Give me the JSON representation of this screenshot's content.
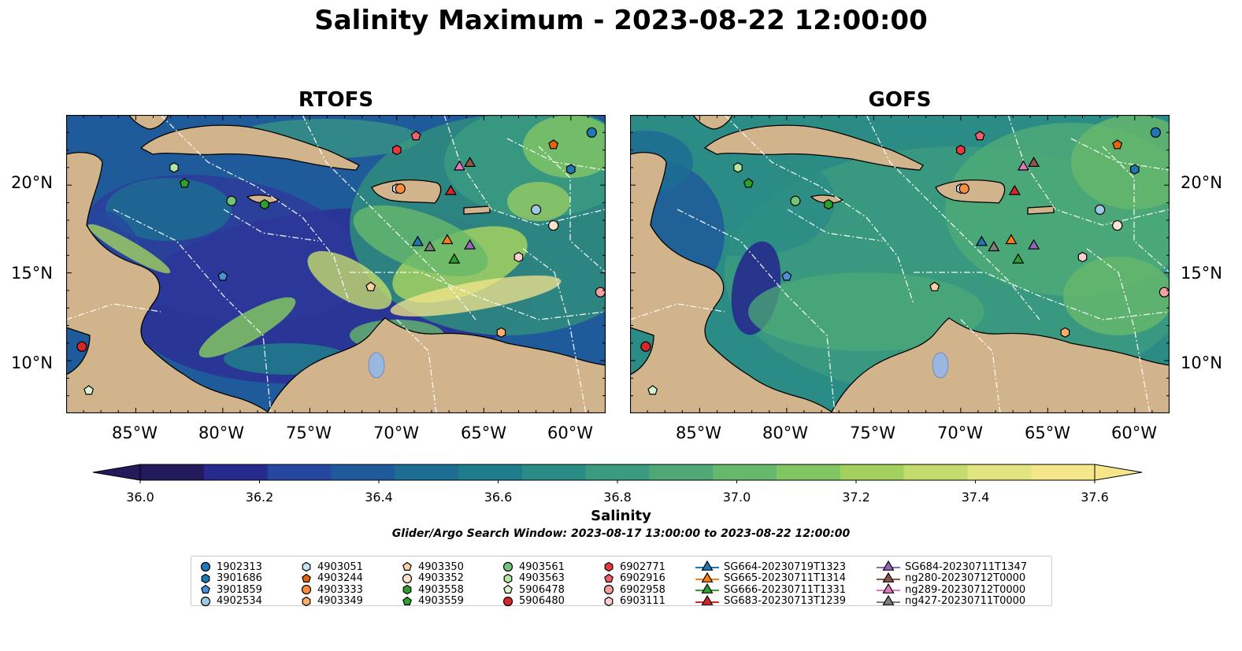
{
  "title": "Salinity Maximum - 2023-08-22 12:00:00",
  "panels": {
    "left": {
      "title": "RTOFS"
    },
    "right": {
      "title": "GOFS"
    }
  },
  "axes": {
    "lat_labels": [
      "20°N",
      "15°N",
      "10°N"
    ],
    "lon_labels": [
      "85°W",
      "80°W",
      "75°W",
      "70°W",
      "65°W",
      "60°W"
    ]
  },
  "colorbar": {
    "label": "Salinity",
    "ticks": [
      "36.0",
      "36.2",
      "36.4",
      "36.6",
      "36.8",
      "37.0",
      "37.2",
      "37.4",
      "37.6"
    ],
    "range": [
      36.0,
      37.6
    ],
    "extend": "both",
    "colors": [
      "#231a5c",
      "#262a8c",
      "#25479f",
      "#1f5b9a",
      "#1d6c93",
      "#1f7c8c",
      "#2b8c86",
      "#3b9a80",
      "#4ea977",
      "#66b86c",
      "#82c563",
      "#a3d160",
      "#c4dc6d",
      "#e2e57f",
      "#f5e68c"
    ]
  },
  "search_window": "Glider/Argo Search Window: 2023-08-17 13:00:00 to 2023-08-22 12:00:00",
  "legend": {
    "columns": [
      [
        {
          "label": "1902313",
          "marker": "circle",
          "color": "#1f77b4"
        },
        {
          "label": "3901686",
          "marker": "hexagon",
          "color": "#1f77b4"
        },
        {
          "label": "3901859",
          "marker": "pentagon",
          "color": "#4a90d9"
        },
        {
          "label": "4902534",
          "marker": "circle",
          "color": "#9ecae1"
        }
      ],
      [
        {
          "label": "4903051",
          "marker": "hexagon",
          "color": "#c6e2f5"
        },
        {
          "label": "4903244",
          "marker": "pentagon",
          "color": "#e6640a"
        },
        {
          "label": "4903333",
          "marker": "circle",
          "color": "#fd8d3c"
        },
        {
          "label": "4903349",
          "marker": "hexagon",
          "color": "#fdae6b"
        }
      ],
      [
        {
          "label": "4903350",
          "marker": "pentagon",
          "color": "#fdd0a2"
        },
        {
          "label": "4903352",
          "marker": "circle",
          "color": "#fee6ce"
        },
        {
          "label": "4903558",
          "marker": "hexagon",
          "color": "#2ca02c"
        },
        {
          "label": "4903559",
          "marker": "pentagon",
          "color": "#2ca02c"
        }
      ],
      [
        {
          "label": "4903561",
          "marker": "circle",
          "color": "#74c476"
        },
        {
          "label": "4903563",
          "marker": "hexagon",
          "color": "#b3e6a3"
        },
        {
          "label": "5906478",
          "marker": "pentagon",
          "color": "#d9f5d0"
        },
        {
          "label": "5906480",
          "marker": "circle",
          "color": "#d62728"
        }
      ],
      [
        {
          "label": "6902771",
          "marker": "hexagon",
          "color": "#e8393f"
        },
        {
          "label": "6902916",
          "marker": "pentagon",
          "color": "#f06070"
        },
        {
          "label": "6902958",
          "marker": "circle",
          "color": "#f4a09c"
        },
        {
          "label": "6903111",
          "marker": "hexagon",
          "color": "#fcd0d0"
        }
      ],
      [
        {
          "label": "SG664-20230719T1323",
          "marker": "triangle",
          "color": "#1f77b4"
        },
        {
          "label": "SG665-20230711T1314",
          "marker": "triangle",
          "color": "#ff7f0e"
        },
        {
          "label": "SG666-20230711T1331",
          "marker": "triangle",
          "color": "#2ca02c"
        },
        {
          "label": "SG683-20230713T1239",
          "marker": "triangle",
          "color": "#d62728"
        }
      ],
      [
        {
          "label": "SG684-20230711T1347",
          "marker": "triangle",
          "color": "#9467bd"
        },
        {
          "label": "ng280-20230712T0000",
          "marker": "triangle",
          "color": "#8c564b"
        },
        {
          "label": "ng289-20230712T0000",
          "marker": "triangle",
          "color": "#e377c2"
        },
        {
          "label": "ng427-20230711T0000",
          "marker": "triangle",
          "color": "#7f7f7f"
        }
      ]
    ]
  }
}
